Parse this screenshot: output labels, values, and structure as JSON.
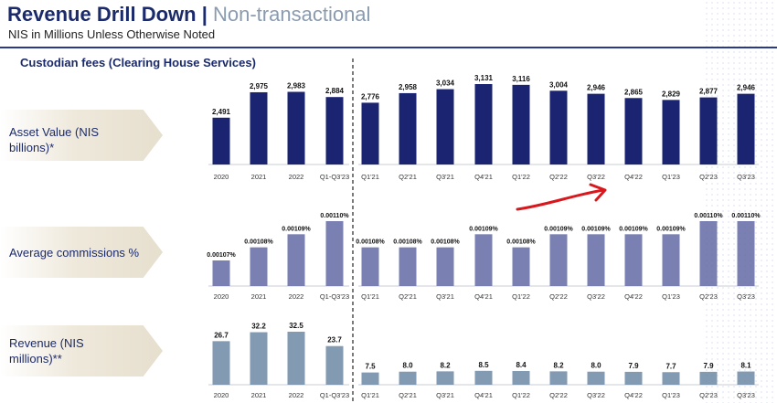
{
  "header": {
    "title": "Revenue Drill Down",
    "separator": "|",
    "title_suffix": "Non-transactional",
    "subtitle": "NIS in Millions Unless Otherwise Noted",
    "section": "Custodian fees (Clearing House Services)"
  },
  "rows": [
    {
      "label_line1": "Asset Value (NIS",
      "label_line2": "billions)*"
    },
    {
      "label_line1": "Average commissions %",
      "label_line2": ""
    },
    {
      "label_line1": "Revenue (NIS",
      "label_line2": "millions)**"
    }
  ],
  "colors": {
    "asset_bar": "#1b2470",
    "commission_bar": "#6b72a8",
    "revenue_bar": "#6d88a6",
    "annotation": "#d9181e",
    "divider": "#333333"
  },
  "chart_data": [
    {
      "type": "bar",
      "title": "Asset Value (NIS billions)*",
      "categories": [
        "2020",
        "2021",
        "2022",
        "Q1-Q3'23",
        "Q1'21",
        "Q2'21",
        "Q3'21",
        "Q4'21",
        "Q1'22",
        "Q2'22",
        "Q3'22",
        "Q4'22",
        "Q1'23",
        "Q2'23",
        "Q3'23"
      ],
      "values": [
        2491,
        2975,
        2983,
        2884,
        2776,
        2958,
        3034,
        3131,
        3116,
        3004,
        2946,
        2865,
        2829,
        2877,
        2946
      ],
      "value_labels": [
        "2,491",
        "2,975",
        "2,983",
        "2,884",
        "2,776",
        "2,958",
        "3,034",
        "3,131",
        "3,116",
        "3,004",
        "2,946",
        "2,865",
        "2,829",
        "2,877",
        "2,946"
      ]
    },
    {
      "type": "bar",
      "title": "Average commissions %",
      "categories": [
        "2020",
        "2021",
        "2022",
        "Q1-Q3'23",
        "Q1'21",
        "Q2'21",
        "Q3'21",
        "Q4'21",
        "Q1'22",
        "Q2'22",
        "Q3'22",
        "Q4'22",
        "Q1'23",
        "Q2'23",
        "Q3'23"
      ],
      "values": [
        0.00107,
        0.00108,
        0.00109,
        0.0011,
        0.00108,
        0.00108,
        0.00108,
        0.00109,
        0.00108,
        0.00109,
        0.00109,
        0.00109,
        0.00109,
        0.0011,
        0.0011
      ],
      "value_labels": [
        "0.00107%",
        "0.00108%",
        "0.00109%",
        "0.00110%",
        "0.00108%",
        "0.00108%",
        "0.00108%",
        "0.00109%",
        "0.00108%",
        "0.00109%",
        "0.00109%",
        "0.00109%",
        "0.00109%",
        "0.00110%",
        "0.00110%"
      ]
    },
    {
      "type": "bar",
      "title": "Revenue (NIS millions)**",
      "categories": [
        "2020",
        "2021",
        "2022",
        "Q1-Q3'23",
        "Q1'21",
        "Q2'21",
        "Q3'21",
        "Q4'21",
        "Q1'22",
        "Q2'22",
        "Q3'22",
        "Q4'22",
        "Q1'23",
        "Q2'23",
        "Q3'23"
      ],
      "values": [
        26.7,
        32.2,
        32.5,
        23.7,
        7.5,
        8.0,
        8.2,
        8.5,
        8.4,
        8.2,
        8.0,
        7.9,
        7.7,
        7.9,
        8.1
      ],
      "value_labels": [
        "26.7",
        "32.2",
        "32.5",
        "23.7",
        "7.5",
        "8.0",
        "8.2",
        "8.5",
        "8.4",
        "8.2",
        "8.0",
        "7.9",
        "7.7",
        "7.9",
        "8.1"
      ]
    }
  ]
}
